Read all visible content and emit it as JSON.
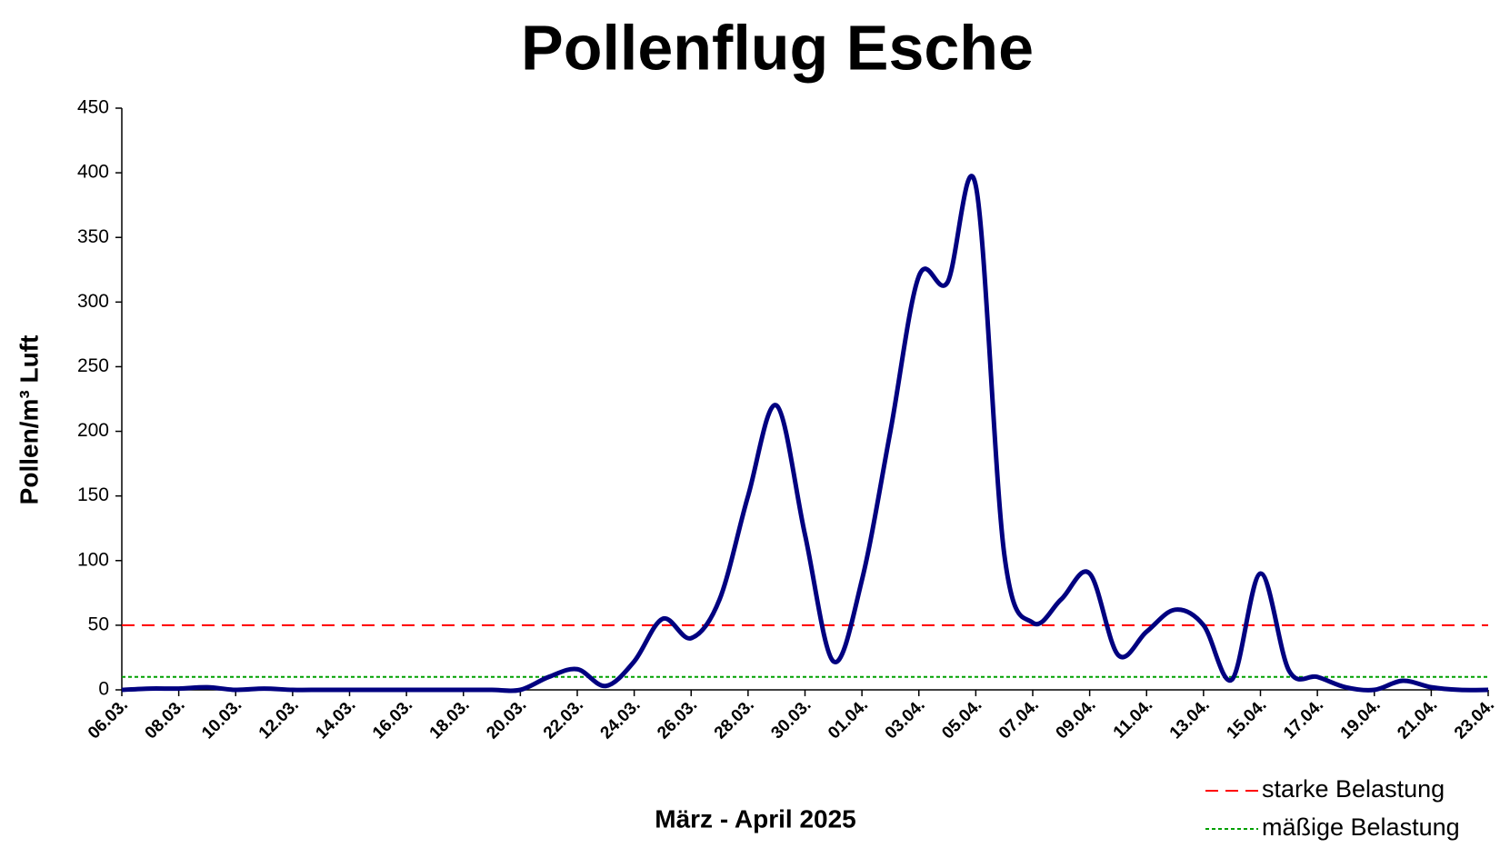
{
  "chart_data": {
    "type": "line",
    "title": "Pollenflug Esche",
    "x_label": "März - April 2025",
    "y_label": "Pollen/m³ Luft",
    "categories": [
      "06.03.",
      null,
      "08.03.",
      null,
      "10.03.",
      null,
      "12.03.",
      null,
      "14.03.",
      null,
      "16.03.",
      null,
      "18.03.",
      null,
      "20.03.",
      null,
      "22.03.",
      null,
      "24.03.",
      null,
      "26.03.",
      null,
      "28.03.",
      null,
      "30.03.",
      null,
      "01.04.",
      null,
      "03.04.",
      null,
      "05.04.",
      null,
      "07.04.",
      null,
      "09.04.",
      null,
      "11.04.",
      null,
      "13.04.",
      null,
      "15.04.",
      null,
      "17.04.",
      null,
      "19.04.",
      null,
      "21.04.",
      null,
      "23.04."
    ],
    "series": [
      {
        "color": "#000080",
        "values": [
          0,
          1,
          1,
          2,
          0,
          1,
          0,
          0,
          0,
          0,
          0,
          0,
          0,
          0,
          0,
          10,
          16,
          3,
          22,
          55,
          40,
          70,
          150,
          220,
          120,
          22,
          85,
          200,
          320,
          315,
          390,
          105,
          52,
          70,
          90,
          27,
          45,
          62,
          50,
          8,
          90,
          15,
          10,
          2,
          0,
          7,
          2,
          0,
          0
        ]
      }
    ],
    "reference_lines": [
      {
        "label": "starke Belastung",
        "value": 50,
        "color": "#ff0000",
        "style": "dashed"
      },
      {
        "label": "mäßige Belastung",
        "value": 10,
        "color": "#00a000",
        "style": "dotted"
      }
    ],
    "ylim": [
      0,
      450
    ],
    "yticks": [
      0,
      50,
      100,
      150,
      200,
      250,
      300,
      350,
      400,
      450
    ],
    "smooth": true
  }
}
